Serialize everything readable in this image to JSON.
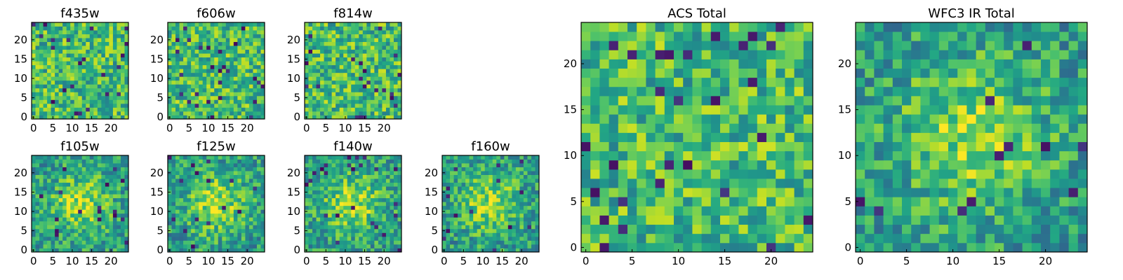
{
  "chart_data": {
    "type": "heatmap",
    "colormap": "viridis",
    "grid": false,
    "panels": [
      {
        "id": "f435w",
        "title": "f435w",
        "size": 25,
        "xlim": [
          0,
          24
        ],
        "ylim": [
          0,
          24
        ],
        "xticks": [
          "0",
          "5",
          "10",
          "15",
          "20"
        ],
        "yticks": [
          "0",
          "5",
          "10",
          "15",
          "20"
        ],
        "pattern": "noise"
      },
      {
        "id": "f606w",
        "title": "f606w",
        "size": 25,
        "xlim": [
          0,
          24
        ],
        "ylim": [
          0,
          24
        ],
        "xticks": [
          "0",
          "5",
          "10",
          "15",
          "20"
        ],
        "yticks": [
          "0",
          "5",
          "10",
          "15",
          "20"
        ],
        "pattern": "noise"
      },
      {
        "id": "f814w",
        "title": "f814w",
        "size": 25,
        "xlim": [
          0,
          24
        ],
        "ylim": [
          0,
          24
        ],
        "xticks": [
          "0",
          "5",
          "10",
          "15",
          "20"
        ],
        "yticks": [
          "0",
          "5",
          "10",
          "15",
          "20"
        ],
        "pattern": "noise"
      },
      {
        "id": "f105w",
        "title": "f105w",
        "size": 25,
        "xlim": [
          0,
          24
        ],
        "ylim": [
          0,
          24
        ],
        "xticks": [
          "0",
          "5",
          "10",
          "15",
          "20"
        ],
        "yticks": [
          "0",
          "5",
          "10",
          "15",
          "20"
        ],
        "pattern": "source"
      },
      {
        "id": "f125w",
        "title": "f125w",
        "size": 25,
        "xlim": [
          0,
          24
        ],
        "ylim": [
          0,
          24
        ],
        "xticks": [
          "0",
          "5",
          "10",
          "15",
          "20"
        ],
        "yticks": [
          "0",
          "5",
          "10",
          "15",
          "20"
        ],
        "pattern": "source"
      },
      {
        "id": "f140w",
        "title": "f140w",
        "size": 25,
        "xlim": [
          0,
          24
        ],
        "ylim": [
          0,
          24
        ],
        "xticks": [
          "0",
          "5",
          "10",
          "15",
          "20"
        ],
        "yticks": [
          "0",
          "5",
          "10",
          "15",
          "20"
        ],
        "pattern": "source"
      },
      {
        "id": "f160w",
        "title": "f160w",
        "size": 25,
        "xlim": [
          0,
          24
        ],
        "ylim": [
          0,
          24
        ],
        "xticks": [
          "0",
          "5",
          "10",
          "15",
          "20"
        ],
        "yticks": [
          "0",
          "5",
          "10",
          "15",
          "20"
        ],
        "pattern": "source"
      },
      {
        "id": "acs-total",
        "title": "ACS Total",
        "size": 25,
        "xlim": [
          0,
          24
        ],
        "ylim": [
          0,
          24
        ],
        "xticks": [
          "0",
          "5",
          "10",
          "15",
          "20"
        ],
        "yticks": [
          "0",
          "5",
          "10",
          "15",
          "20"
        ],
        "pattern": "noise"
      },
      {
        "id": "wfc3-ir-total",
        "title": "WFC3 IR Total",
        "size": 25,
        "xlim": [
          0,
          24
        ],
        "ylim": [
          0,
          24
        ],
        "xticks": [
          "0",
          "5",
          "10",
          "15",
          "20"
        ],
        "yticks": [
          "0",
          "5",
          "10",
          "15",
          "20"
        ],
        "pattern": "source"
      }
    ]
  }
}
